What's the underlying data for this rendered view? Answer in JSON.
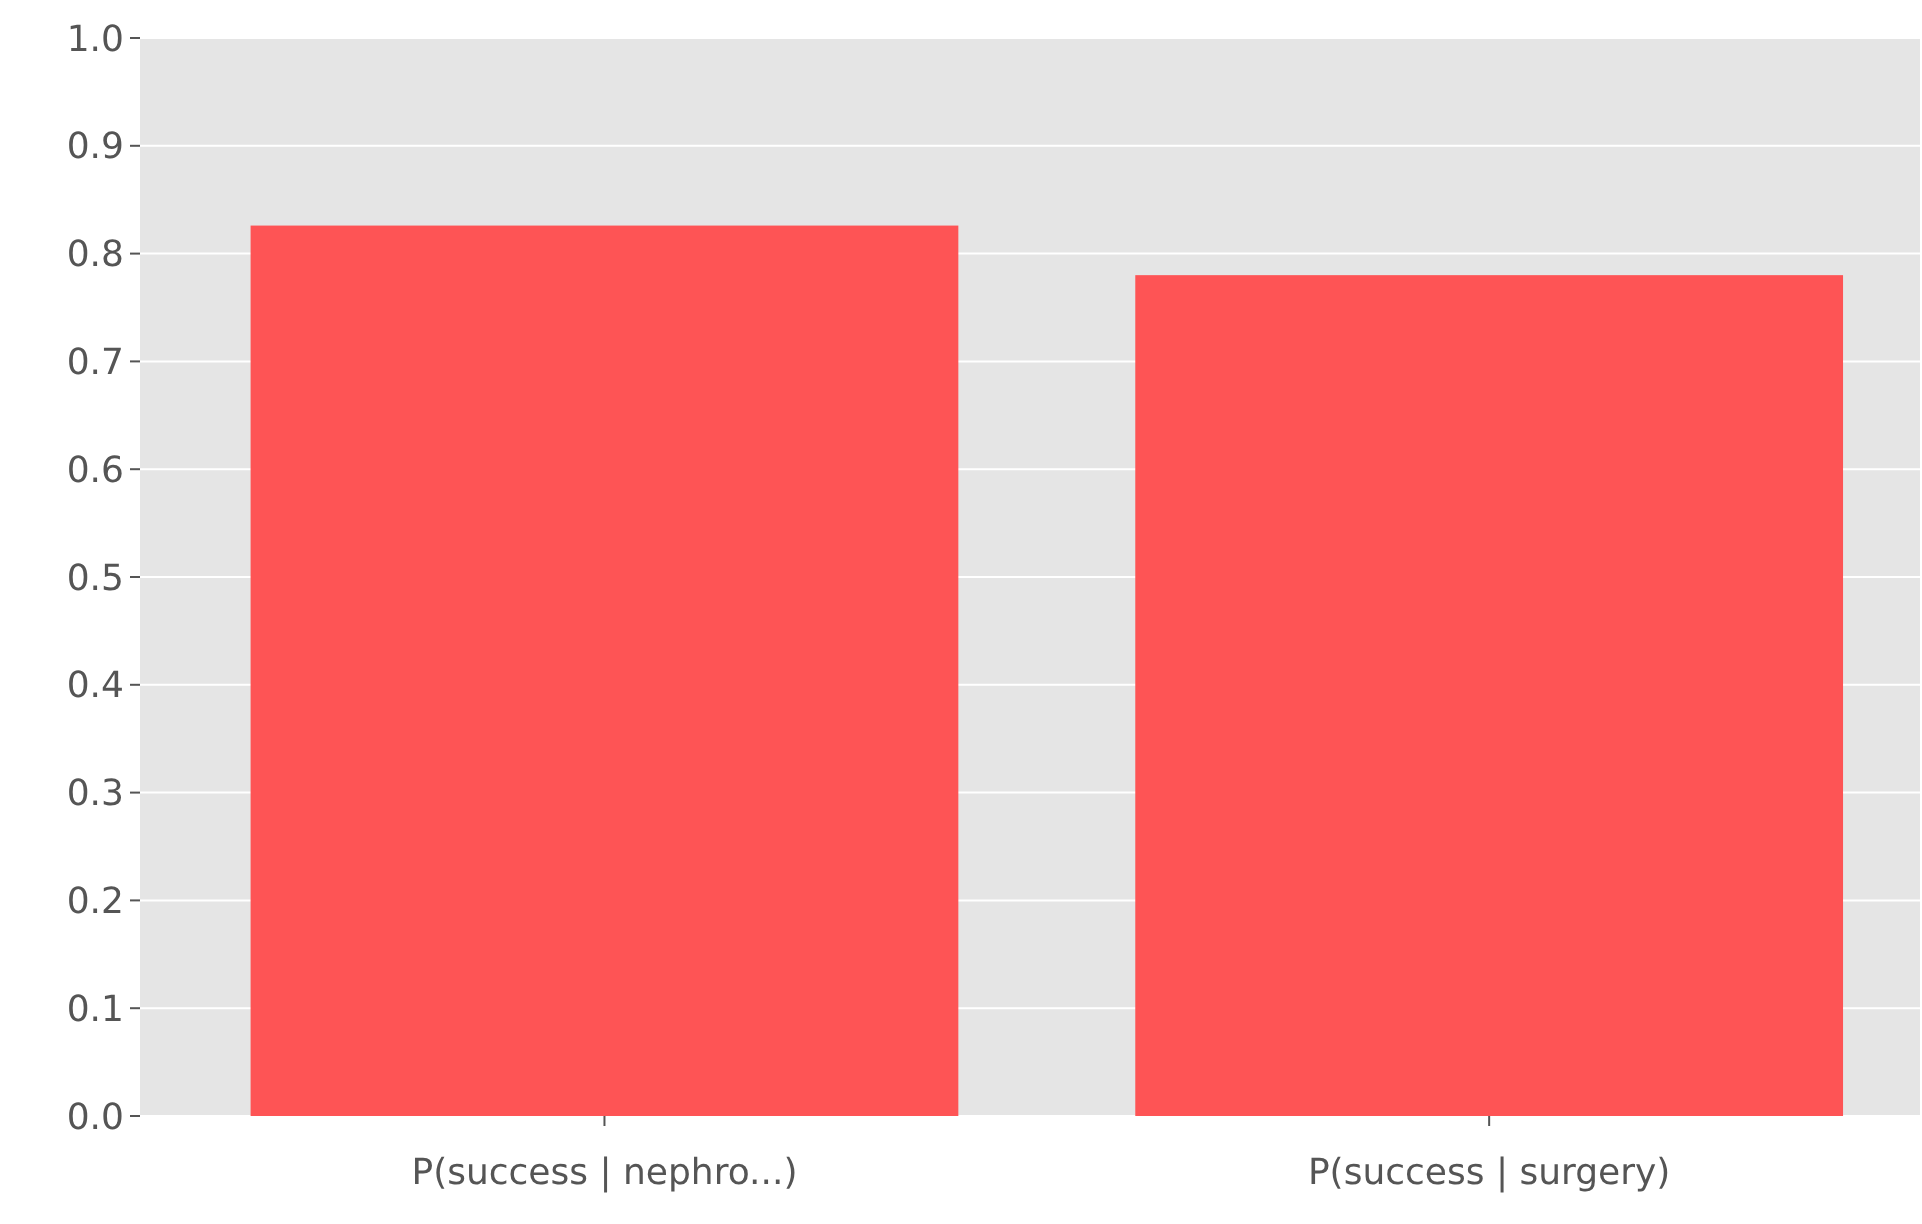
{
  "chart_data": {
    "type": "bar",
    "categories": [
      "P(success | nephro...)",
      "P(success | surgery)"
    ],
    "values": [
      0.826,
      0.78
    ],
    "color": "#fe5455",
    "ylim": [
      0,
      1
    ],
    "yticks": [
      {
        "value": 0,
        "label": "0.0"
      },
      {
        "value": 0.1,
        "label": "0.1"
      },
      {
        "value": 0.2,
        "label": "0.2"
      },
      {
        "value": 0.3,
        "label": "0.3"
      },
      {
        "value": 0.4,
        "label": "0.4"
      },
      {
        "value": 0.5,
        "label": "0.5"
      },
      {
        "value": 0.6,
        "label": "0.6"
      },
      {
        "value": 0.7,
        "label": "0.7"
      },
      {
        "value": 0.8,
        "label": "0.8"
      },
      {
        "value": 0.9,
        "label": "0.9"
      },
      {
        "value": 1,
        "label": "1.0"
      }
    ],
    "grid": "y"
  }
}
